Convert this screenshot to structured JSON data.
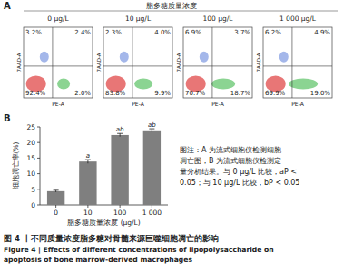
{
  "panel_a": {
    "label": "A",
    "header": "脂多糖质量浓度",
    "x_label": "PE-A",
    "y_label": "7AAD-A",
    "panels": [
      {
        "title": "0 μg/L",
        "quadrants": [
          "3.2%",
          "2.4%",
          "92.4%",
          "2.0%"
        ]
      },
      {
        "title": "10 μg/L",
        "quadrants": [
          "2.3%",
          "4.0%",
          "83.8%",
          "9.9%"
        ]
      },
      {
        "title": "100 μg/L",
        "quadrants": [
          "6.9%",
          "3.7%",
          "70.7%",
          "18.7%"
        ]
      },
      {
        "title": "1 000 μg/L",
        "quadrants": [
          "6.2%",
          "4.9%",
          "69.9%",
          "19.0%"
        ]
      }
    ]
  },
  "panel_b_label": "B",
  "chart_data": {
    "type": "bar",
    "categories": [
      "0",
      "10",
      "100",
      "1 000"
    ],
    "values": [
      4.4,
      13.9,
      22.4,
      23.9
    ],
    "errors": [
      0.3,
      0.6,
      0.5,
      0.5
    ],
    "significance": [
      null,
      "a",
      "ab",
      "ab"
    ],
    "color": "#7f7f7f",
    "x_label": "脂多糖质量浓度 (μg/L)",
    "y_label": "细胞凋亡率(%)",
    "ylim": [
      0,
      25
    ],
    "yticks": [
      0,
      5,
      10,
      15,
      20,
      25
    ],
    "grid": false
  },
  "note": [
    "图注：A 为流式细胞仪检测细胞",
    "凋亡图，B 为流式细胞仪检测定",
    "量分析结果。与 0 μg/L 比较，aP <",
    "0.05；与 10 μg/L 比较，bP < 0.05"
  ],
  "figure_title": "图 4 丨不同质量浓度脂多糖对骨髓来源巨噬细胞凋亡的影响",
  "figure_title_en": [
    "Figure 4 | Effects of different concentrations of lipopolysaccharide on",
    "apoptosis of bone marrow-derived macrophages"
  ]
}
